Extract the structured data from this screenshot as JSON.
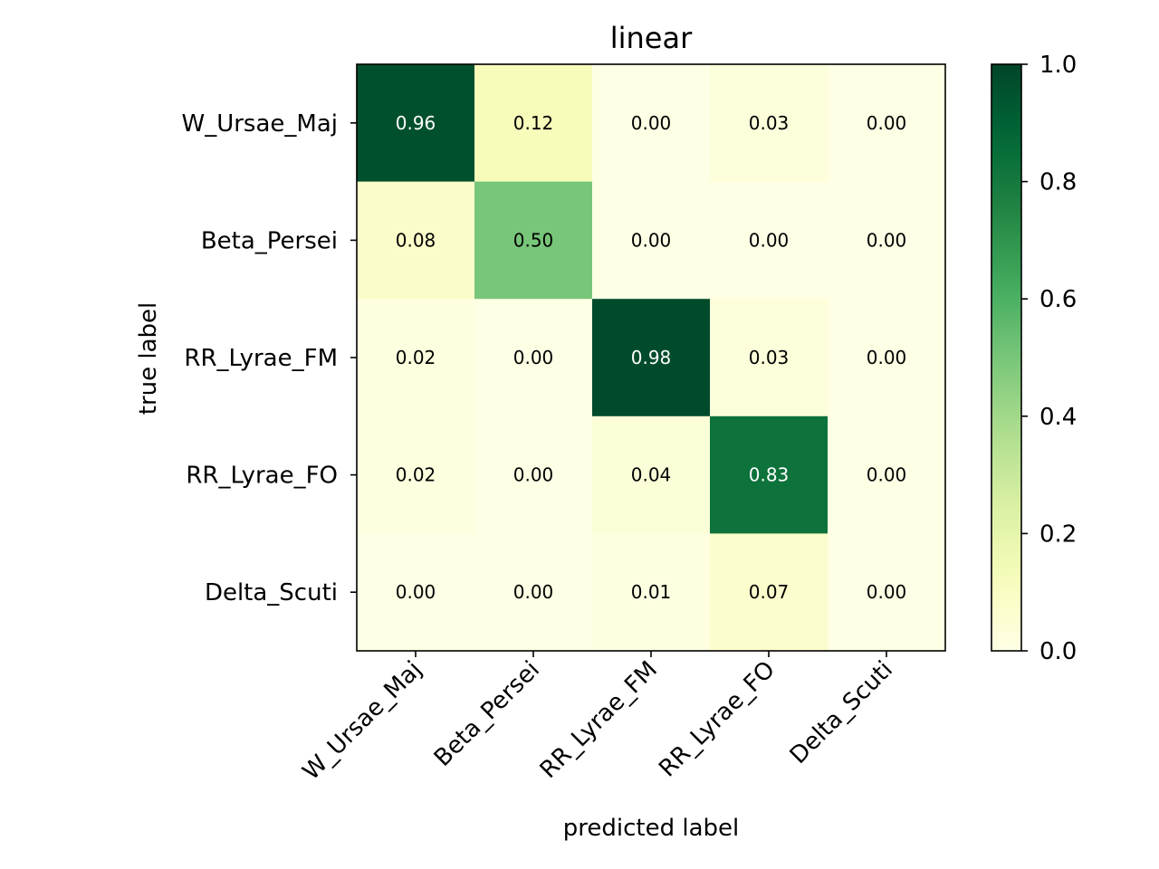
{
  "chart_data": {
    "type": "heatmap",
    "title": "linear",
    "xlabel": "predicted label",
    "ylabel": "true label",
    "x_categories": [
      "W_Ursae_Maj",
      "Beta_Persei",
      "RR_Lyrae_FM",
      "RR_Lyrae_FO",
      "Delta_Scuti"
    ],
    "y_categories": [
      "W_Ursae_Maj",
      "Beta_Persei",
      "RR_Lyrae_FM",
      "RR_Lyrae_FO",
      "Delta_Scuti"
    ],
    "values": [
      [
        0.96,
        0.12,
        0.0,
        0.03,
        0.0
      ],
      [
        0.08,
        0.5,
        0.0,
        0.0,
        0.0
      ],
      [
        0.02,
        0.0,
        0.98,
        0.03,
        0.0
      ],
      [
        0.02,
        0.0,
        0.04,
        0.83,
        0.0
      ],
      [
        0.0,
        0.0,
        0.01,
        0.07,
        0.0
      ]
    ],
    "value_labels": [
      [
        "0.96",
        "0.12",
        "0.00",
        "0.03",
        "0.00"
      ],
      [
        "0.08",
        "0.50",
        "0.00",
        "0.00",
        "0.00"
      ],
      [
        "0.02",
        "0.00",
        "0.98",
        "0.03",
        "0.00"
      ],
      [
        "0.02",
        "0.00",
        "0.04",
        "0.83",
        "0.00"
      ],
      [
        "0.00",
        "0.00",
        "0.01",
        "0.07",
        "0.00"
      ]
    ],
    "colormap": "YlGn",
    "colorbar": {
      "range": [
        0.0,
        1.0
      ],
      "ticks": [
        0.0,
        0.2,
        0.4,
        0.6,
        0.8,
        1.0
      ],
      "tick_labels": [
        "0.0",
        "0.2",
        "0.4",
        "0.6",
        "0.8",
        "1.0"
      ]
    },
    "x_tick_rotation_deg": 45,
    "grid": false,
    "legend": "colorbar-right"
  }
}
